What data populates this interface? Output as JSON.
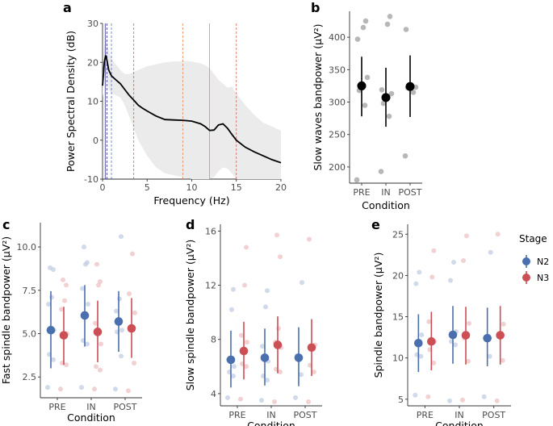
{
  "figure": {
    "panel_labels": [
      "a",
      "b",
      "c",
      "d",
      "e"
    ]
  },
  "chart_data": [
    {
      "id": "a",
      "type": "line",
      "panel_label": "a",
      "xlabel": "Frequency (Hz)",
      "ylabel": "Power Spectral Density (dB)",
      "xlim": [
        0,
        20
      ],
      "ylim": [
        -10,
        30
      ],
      "xticks": [
        0,
        5,
        10,
        15,
        20
      ],
      "yticks": [
        -10,
        0,
        10,
        20,
        30
      ],
      "x": [
        0,
        0.2,
        0.35,
        0.5,
        0.7,
        1,
        1.5,
        2,
        2.5,
        3,
        3.5,
        4,
        4.5,
        5,
        6,
        7,
        8,
        9,
        10,
        11,
        11.5,
        12,
        12.5,
        13,
        13.5,
        14,
        14.5,
        15,
        16,
        17,
        18,
        19,
        20
      ],
      "series": [
        {
          "name": "mean",
          "values": [
            14,
            20,
            21.8,
            20.5,
            18,
            16.5,
            15.5,
            14.5,
            13,
            11.5,
            10.3,
            9,
            8.2,
            7.5,
            6.2,
            5.3,
            5.2,
            5.1,
            4.9,
            4.2,
            3.5,
            2.5,
            2.6,
            3.9,
            4.2,
            3.1,
            1.5,
            0,
            -1.8,
            -3,
            -4,
            -5,
            -5.8
          ]
        },
        {
          "name": "upper",
          "values": [
            17,
            24,
            26,
            25,
            23,
            21,
            19.5,
            18,
            17,
            17,
            17.5,
            18,
            18.5,
            19,
            19.5,
            20,
            20.2,
            20.3,
            20.2,
            19.7,
            19.3,
            18.5,
            17,
            15.5,
            14.5,
            13.5,
            13.8,
            12,
            9,
            6.5,
            4.5,
            3.5,
            2.5
          ]
        },
        {
          "name": "lower",
          "values": [
            11,
            16,
            17.5,
            16,
            13,
            12,
            11.5,
            11,
            9,
            6,
            3,
            0,
            -2,
            -4,
            -7,
            -8.5,
            -9,
            -9.5,
            -10,
            -10,
            -10,
            -10,
            -9.5,
            -8,
            -7,
            -7.3,
            -8.5,
            -10,
            -10,
            -10,
            -10,
            -10,
            -10
          ]
        }
      ],
      "vlines": [
        {
          "x": 0.3,
          "color": "#000080",
          "style": "solid"
        },
        {
          "x": 0.5,
          "color": "#000080",
          "style": "dashed"
        },
        {
          "x": 1,
          "color": "#2255aa",
          "style": "dashed"
        },
        {
          "x": 3.5,
          "color": "#c04030",
          "style": "dashed"
        },
        {
          "x": 9,
          "color": "#e07030",
          "style": "dashed"
        },
        {
          "x": 12,
          "color": "#e07030",
          "style": "solid"
        },
        {
          "x": 15,
          "color": "#c04030",
          "style": "dashed"
        }
      ]
    },
    {
      "id": "b",
      "type": "scatter",
      "panel_label": "b",
      "xlabel": "Condition",
      "ylabel": "Slow waves bandpower (μV²)",
      "categories": [
        "PRE",
        "IN",
        "POST"
      ],
      "ylim": [
        175,
        440
      ],
      "yticks": [
        200,
        250,
        300,
        350,
        400
      ],
      "points": [
        [
          180,
          295,
          318,
          338,
          397,
          415,
          425
        ],
        [
          193,
          278,
          298,
          313,
          319,
          420,
          432
        ],
        [
          217,
          315,
          322,
          323,
          412
        ]
      ],
      "means": [
        325,
        307,
        324
      ],
      "ci": [
        [
          278,
          370
        ],
        [
          262,
          353
        ],
        [
          277,
          372
        ]
      ],
      "point_color": "#aaaaaa",
      "mean_color": "#000000"
    },
    {
      "id": "c",
      "type": "scatter",
      "panel_label": "c",
      "xlabel": "Condition",
      "ylabel": "Fast spindle bandpower (μV²)",
      "categories": [
        "PRE",
        "IN",
        "POST"
      ],
      "ylim": [
        1.3,
        11.4
      ],
      "yticks": [
        2.5,
        5.0,
        7.5,
        10.0
      ],
      "ytick_labels": [
        "2.5",
        "5.0",
        "7.5",
        "10.0"
      ],
      "series": [
        {
          "name": "N2",
          "color": "#4a6fae",
          "points": [
            [
              1.9,
              3.5,
              3.8,
              5.2,
              6.7,
              7.1,
              8.7,
              8.8
            ],
            [
              1.9,
              4.4,
              4.6,
              6.7,
              7.6,
              9.0,
              9.1,
              10.0
            ],
            [
              1.8,
              3.7,
              5.1,
              5.2,
              6.3,
              7.0,
              10.6
            ]
          ],
          "means": [
            5.2,
            6.05,
            5.7
          ],
          "ci": [
            [
              3.0,
              7.45
            ],
            [
              4.25,
              7.8
            ],
            [
              3.95,
              7.45
            ]
          ]
        },
        {
          "name": "N3",
          "color": "#cc4f55",
          "points": [
            [
              1.8,
              3.2,
              3.3,
              5.0,
              6.4,
              6.9,
              7.8,
              8.1
            ],
            [
              1.8,
              2.9,
              3.1,
              4.4,
              5.6,
              7.8,
              8.0,
              9.0
            ],
            [
              1.7,
              3.3,
              5.2,
              6.2,
              7.3,
              9.6
            ]
          ],
          "means": [
            4.9,
            5.1,
            5.3
          ],
          "ci": [
            [
              3.2,
              6.55
            ],
            [
              3.35,
              6.9
            ],
            [
              3.6,
              7.05
            ]
          ]
        }
      ]
    },
    {
      "id": "d",
      "type": "scatter",
      "panel_label": "d",
      "xlabel": "Condition",
      "ylabel": "Slow spindle bandpower (μV²)",
      "categories": [
        "PRE",
        "IN",
        "POST"
      ],
      "ylim": [
        3.1,
        16.5
      ],
      "yticks": [
        4,
        8,
        12,
        16
      ],
      "series": [
        {
          "name": "N2",
          "color": "#4a6fae",
          "points": [
            [
              3.7,
              5.3,
              5.6,
              6.0,
              6.5,
              10.2,
              11.7
            ],
            [
              3.5,
              5.0,
              5.3,
              6.4,
              7.5,
              10.4,
              11.6
            ],
            [
              3.7,
              5.4,
              6.8,
              12.2
            ]
          ],
          "means": [
            6.5,
            6.65,
            6.65
          ],
          "ci": [
            [
              4.45,
              8.65
            ],
            [
              4.6,
              8.8
            ],
            [
              4.55,
              8.9
            ]
          ]
        },
        {
          "name": "N3",
          "color": "#cc4f55",
          "points": [
            [
              3.6,
              6.0,
              6.2,
              7.8,
              8.3,
              12.0,
              14.8
            ],
            [
              3.4,
              5.6,
              5.8,
              7.4,
              7.8,
              8.8,
              14.1,
              15.7
            ],
            [
              3.4,
              5.6,
              6.1,
              7.6,
              15.4
            ]
          ],
          "means": [
            7.15,
            7.6,
            7.4
          ],
          "ci": [
            [
              5.05,
              9.3
            ],
            [
              5.5,
              9.7
            ],
            [
              5.3,
              9.5
            ]
          ]
        }
      ]
    },
    {
      "id": "e",
      "type": "scatter",
      "panel_label": "e",
      "xlabel": "Condition",
      "ylabel": "Spindle bandpower (μV²)",
      "categories": [
        "PRE",
        "IN",
        "POST"
      ],
      "ylim": [
        4.2,
        26.2
      ],
      "yticks": [
        5,
        10,
        15,
        20,
        25
      ],
      "series": [
        {
          "name": "N2",
          "color": "#4a6fae",
          "points": [
            [
              5.5,
              10.2,
              10.4,
              12.8,
              19.0,
              20.4
            ],
            [
              4.8,
              11.6,
              12.0,
              13.2,
              19.4,
              21.6
            ],
            [
              5.3,
              10.2,
              12.5,
              22.8
            ]
          ],
          "means": [
            11.8,
            12.8,
            12.4
          ],
          "ci": [
            [
              8.3,
              15.3
            ],
            [
              9.3,
              16.3
            ],
            [
              9.0,
              16.1
            ]
          ]
        },
        {
          "name": "N3",
          "color": "#cc4f55",
          "points": [
            [
              5.3,
              9.4,
              11.0,
              12.0,
              14.4,
              19.8,
              23.0
            ],
            [
              4.9,
              9.6,
              12.4,
              14.2,
              21.8,
              24.8
            ],
            [
              4.8,
              9.7,
              12.6,
              14.1,
              25.0
            ]
          ],
          "means": [
            12.0,
            12.75,
            12.75
          ],
          "ci": [
            [
              8.5,
              15.6
            ],
            [
              9.2,
              16.2
            ],
            [
              9.2,
              16.3
            ]
          ]
        }
      ],
      "legend": {
        "title": "Stage",
        "entries": [
          "N2",
          "N3"
        ],
        "position": "right"
      }
    }
  ]
}
